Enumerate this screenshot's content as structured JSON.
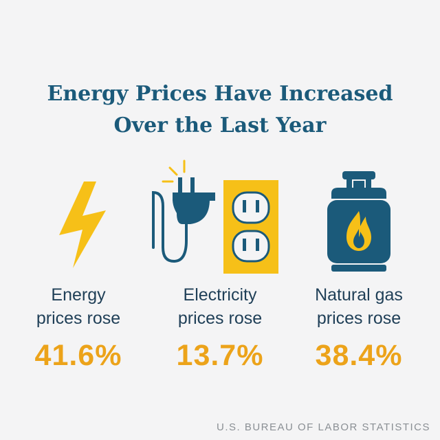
{
  "title": {
    "line1": "Energy Prices Have Increased",
    "line2": "Over the Last Year"
  },
  "stats": [
    {
      "label_line1": "Energy",
      "label_line2": "prices rose",
      "value": "41.6%",
      "icon": "lightning-bolt-icon"
    },
    {
      "label_line1": "Electricity",
      "label_line2": "prices rose",
      "value": "13.7%",
      "icon": "plug-and-outlet-icon"
    },
    {
      "label_line1": "Natural gas",
      "label_line2": "prices rose",
      "value": "38.4%",
      "icon": "gas-tank-icon"
    }
  ],
  "source": "U.S. BUREAU OF LABOR STATISTICS",
  "colors": {
    "background": "#f4f4f5",
    "title": "#1b5a7a",
    "accent_yellow": "#f6c018",
    "accent_orange": "#eca31a",
    "icon_blue": "#1b5a7a"
  }
}
